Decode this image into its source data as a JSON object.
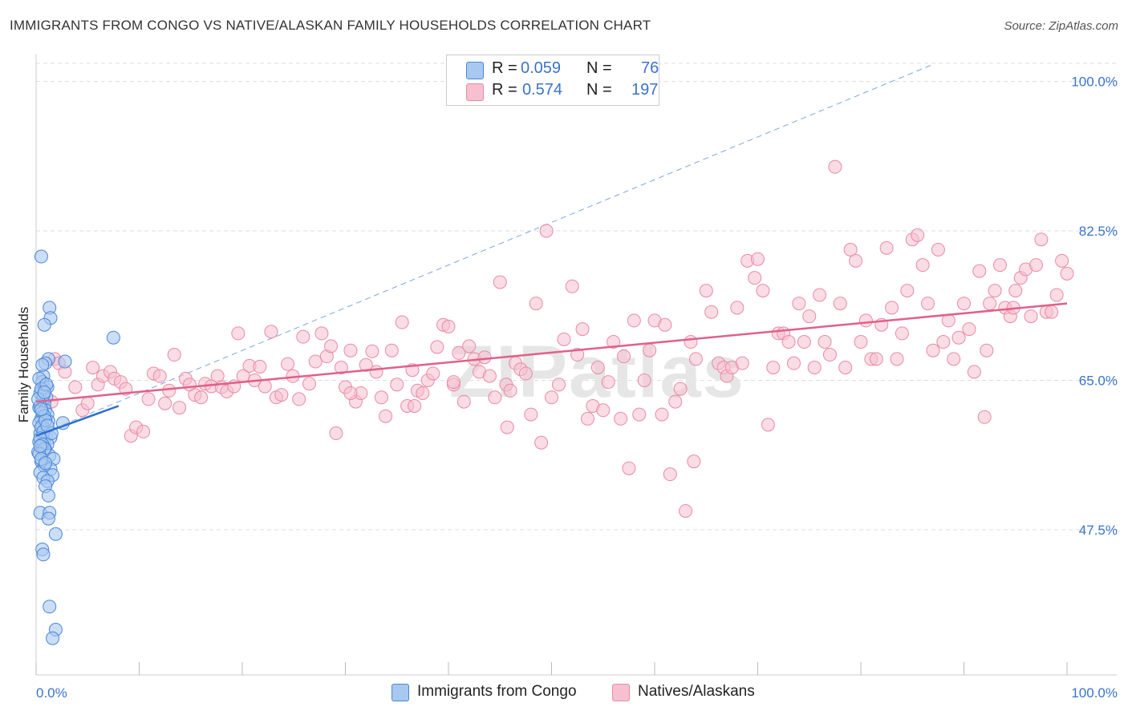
{
  "header": {
    "title": "IMMIGRANTS FROM CONGO VS NATIVE/ALASKAN FAMILY HOUSEHOLDS CORRELATION CHART",
    "source": "Source: ZipAtlas.com"
  },
  "legend": {
    "rows": [
      {
        "r_label": "R =",
        "r_value": "0.059",
        "n_label": "N =",
        "n_value": "76"
      },
      {
        "r_label": "R =",
        "r_value": "0.574",
        "n_label": "N =",
        "n_value": "197"
      }
    ]
  },
  "bottom_legend": {
    "items": [
      {
        "label": "Immigrants from Congo"
      },
      {
        "label": "Natives/Alaskans"
      }
    ]
  },
  "colors": {
    "blue_fill": "#a9c8f0",
    "blue_stroke": "#4a86d8",
    "blue_line": "#2f6fd0",
    "pink_fill": "#f6c0d0",
    "pink_stroke": "#e88aa8",
    "pink_line": "#e0608a",
    "tick_text": "#3b73c9",
    "grid": "#dddddd"
  },
  "chart_data": {
    "type": "scatter",
    "title": "IMMIGRANTS FROM CONGO VS NATIVE/ALASKAN FAMILY HOUSEHOLDS CORRELATION CHART",
    "xlabel": "",
    "ylabel": "Family Households",
    "xlim": [
      0,
      100
    ],
    "ylim": [
      30.5,
      102.5
    ],
    "x_tick_labels": {
      "left": "0.0%",
      "right": "100.0%"
    },
    "y_ticks": [
      {
        "value": 47.5,
        "label": "47.5%"
      },
      {
        "value": 65.0,
        "label": "65.0%"
      },
      {
        "value": 82.5,
        "label": "82.5%"
      },
      {
        "value": 100.0,
        "label": "100.0%"
      }
    ],
    "watermark": "ZIPatlas",
    "series": [
      {
        "name": "Immigrants from Congo",
        "R": 0.059,
        "N": 76,
        "trend": {
          "x": [
            0,
            8.0
          ],
          "y": [
            58.5,
            62.0
          ]
        },
        "diagonal": {
          "x": [
            0,
            87
          ],
          "y": [
            58.5,
            102.0
          ]
        },
        "points": [
          [
            0.5,
            79.5
          ],
          [
            1.3,
            73.5
          ],
          [
            1.4,
            72.3
          ],
          [
            0.8,
            71.5
          ],
          [
            1.2,
            67.5
          ],
          [
            0.9,
            67.0
          ],
          [
            2.8,
            67.2
          ],
          [
            7.5,
            70.0
          ],
          [
            0.7,
            65.5
          ],
          [
            0.6,
            64.8
          ],
          [
            1.1,
            64.2
          ],
          [
            0.4,
            63.5
          ],
          [
            1.0,
            63.0
          ],
          [
            0.6,
            62.6
          ],
          [
            0.8,
            62.2
          ],
          [
            0.3,
            61.8
          ],
          [
            0.9,
            61.5
          ],
          [
            1.1,
            61.0
          ],
          [
            0.5,
            60.5
          ],
          [
            1.2,
            60.2
          ],
          [
            0.6,
            59.8
          ],
          [
            0.8,
            59.3
          ],
          [
            2.6,
            60.0
          ],
          [
            0.4,
            58.8
          ],
          [
            1.0,
            58.5
          ],
          [
            1.4,
            58.3
          ],
          [
            0.7,
            58.0
          ],
          [
            0.3,
            57.8
          ],
          [
            1.1,
            57.5
          ],
          [
            0.6,
            57.2
          ],
          [
            0.9,
            56.9
          ],
          [
            0.2,
            56.6
          ],
          [
            1.3,
            56.2
          ],
          [
            1.7,
            55.8
          ],
          [
            0.5,
            55.5
          ],
          [
            0.8,
            55.0
          ],
          [
            1.4,
            54.6
          ],
          [
            0.4,
            54.2
          ],
          [
            1.6,
            53.9
          ],
          [
            0.7,
            53.6
          ],
          [
            1.1,
            53.2
          ],
          [
            0.9,
            52.6
          ],
          [
            1.2,
            51.5
          ],
          [
            0.4,
            49.5
          ],
          [
            1.3,
            49.5
          ],
          [
            1.2,
            48.8
          ],
          [
            1.9,
            47.0
          ],
          [
            0.6,
            45.2
          ],
          [
            0.7,
            44.6
          ],
          [
            1.3,
            38.5
          ],
          [
            1.9,
            35.8
          ],
          [
            1.6,
            34.8
          ],
          [
            0.3,
            65.2
          ],
          [
            0.5,
            64.0
          ],
          [
            0.7,
            63.2
          ],
          [
            0.4,
            62.0
          ],
          [
            0.6,
            61.2
          ],
          [
            0.8,
            60.8
          ],
          [
            0.3,
            60.0
          ],
          [
            0.5,
            59.5
          ],
          [
            0.7,
            59.0
          ],
          [
            0.4,
            58.2
          ],
          [
            0.6,
            57.5
          ],
          [
            0.8,
            57.0
          ],
          [
            0.3,
            56.4
          ],
          [
            0.5,
            55.8
          ],
          [
            0.9,
            55.3
          ],
          [
            0.2,
            62.8
          ],
          [
            1.0,
            64.5
          ],
          [
            0.6,
            66.8
          ],
          [
            0.9,
            60.3
          ],
          [
            1.5,
            58.8
          ],
          [
            0.5,
            61.6
          ],
          [
            0.8,
            63.6
          ],
          [
            1.1,
            59.7
          ],
          [
            0.4,
            57.3
          ]
        ]
      },
      {
        "name": "Natives/Alaskans",
        "R": 0.574,
        "N": 197,
        "trend": {
          "x": [
            0,
            100
          ],
          "y": [
            62.5,
            74.0
          ]
        },
        "points": [
          [
            0.8,
            64.0
          ],
          [
            1.5,
            62.5
          ],
          [
            1.8,
            67.5
          ],
          [
            2.2,
            67.0
          ],
          [
            2.8,
            66.0
          ],
          [
            3.8,
            64.2
          ],
          [
            4.5,
            61.5
          ],
          [
            5.0,
            62.3
          ],
          [
            5.5,
            66.5
          ],
          [
            6.0,
            64.5
          ],
          [
            6.5,
            65.5
          ],
          [
            7.2,
            66.0
          ],
          [
            7.6,
            65.2
          ],
          [
            8.2,
            64.8
          ],
          [
            8.7,
            64.0
          ],
          [
            9.2,
            58.5
          ],
          [
            9.7,
            59.5
          ],
          [
            10.4,
            59.0
          ],
          [
            10.9,
            62.8
          ],
          [
            11.4,
            65.8
          ],
          [
            12.0,
            65.5
          ],
          [
            12.5,
            62.3
          ],
          [
            12.9,
            63.8
          ],
          [
            13.4,
            68.0
          ],
          [
            13.9,
            61.8
          ],
          [
            14.5,
            65.2
          ],
          [
            14.9,
            64.5
          ],
          [
            15.4,
            63.3
          ],
          [
            16.0,
            63.0
          ],
          [
            16.4,
            64.6
          ],
          [
            17.0,
            64.3
          ],
          [
            17.6,
            65.5
          ],
          [
            18.0,
            64.2
          ],
          [
            18.5,
            63.7
          ],
          [
            19.2,
            64.3
          ],
          [
            19.6,
            70.5
          ],
          [
            20.1,
            65.5
          ],
          [
            20.7,
            66.7
          ],
          [
            21.2,
            65.0
          ],
          [
            21.7,
            66.6
          ],
          [
            22.2,
            64.3
          ],
          [
            22.8,
            70.7
          ],
          [
            23.3,
            63.0
          ],
          [
            23.8,
            63.3
          ],
          [
            24.4,
            66.9
          ],
          [
            24.9,
            65.5
          ],
          [
            25.5,
            62.8
          ],
          [
            25.9,
            70.1
          ],
          [
            26.5,
            64.6
          ],
          [
            27.1,
            67.2
          ],
          [
            27.7,
            70.5
          ],
          [
            28.2,
            67.8
          ],
          [
            28.6,
            69.0
          ],
          [
            29.1,
            58.8
          ],
          [
            29.6,
            66.5
          ],
          [
            30.0,
            64.2
          ],
          [
            30.5,
            68.5
          ],
          [
            31.0,
            62.5
          ],
          [
            31.5,
            63.5
          ],
          [
            32.0,
            66.8
          ],
          [
            32.6,
            68.4
          ],
          [
            33.0,
            66.0
          ],
          [
            33.5,
            63.0
          ],
          [
            33.9,
            60.8
          ],
          [
            34.5,
            68.5
          ],
          [
            35.0,
            64.5
          ],
          [
            35.5,
            71.8
          ],
          [
            36.0,
            62.0
          ],
          [
            36.5,
            66.2
          ],
          [
            37.0,
            63.8
          ],
          [
            37.5,
            63.5
          ],
          [
            38.0,
            65.0
          ],
          [
            38.5,
            65.8
          ],
          [
            38.9,
            68.9
          ],
          [
            39.5,
            71.5
          ],
          [
            40.0,
            71.3
          ],
          [
            40.5,
            64.5
          ],
          [
            41.0,
            68.2
          ],
          [
            41.5,
            62.5
          ],
          [
            42.0,
            69.0
          ],
          [
            42.5,
            67.5
          ],
          [
            43.0,
            66.0
          ],
          [
            43.5,
            67.7
          ],
          [
            44.0,
            65.5
          ],
          [
            44.5,
            63.0
          ],
          [
            45.0,
            76.5
          ],
          [
            45.6,
            64.5
          ],
          [
            46.0,
            63.8
          ],
          [
            46.5,
            67.0
          ],
          [
            47.0,
            66.3
          ],
          [
            47.5,
            65.8
          ],
          [
            48.0,
            61.0
          ],
          [
            48.5,
            74.0
          ],
          [
            49.0,
            57.7
          ],
          [
            49.5,
            82.5
          ],
          [
            50.0,
            63.0
          ],
          [
            50.7,
            64.5
          ],
          [
            51.2,
            69.8
          ],
          [
            52.0,
            76.0
          ],
          [
            52.5,
            68.0
          ],
          [
            53.0,
            71.0
          ],
          [
            53.5,
            60.5
          ],
          [
            54.0,
            62.0
          ],
          [
            54.5,
            66.5
          ],
          [
            55.0,
            61.5
          ],
          [
            55.5,
            64.8
          ],
          [
            56.0,
            69.5
          ],
          [
            56.7,
            60.5
          ],
          [
            57.0,
            67.8
          ],
          [
            57.5,
            54.7
          ],
          [
            58.0,
            72.0
          ],
          [
            58.5,
            61.0
          ],
          [
            59.0,
            65.0
          ],
          [
            59.5,
            68.5
          ],
          [
            60.0,
            72.0
          ],
          [
            60.7,
            61.0
          ],
          [
            61.0,
            71.5
          ],
          [
            61.5,
            54.0
          ],
          [
            62.0,
            62.5
          ],
          [
            62.5,
            64.0
          ],
          [
            63.0,
            49.7
          ],
          [
            63.5,
            69.5
          ],
          [
            64.0,
            67.5
          ],
          [
            65.0,
            75.5
          ],
          [
            65.5,
            73.0
          ],
          [
            66.2,
            67.0
          ],
          [
            66.7,
            66.5
          ],
          [
            67.0,
            65.5
          ],
          [
            67.5,
            66.5
          ],
          [
            68.0,
            73.5
          ],
          [
            68.5,
            67.0
          ],
          [
            69.0,
            79.0
          ],
          [
            69.7,
            77.0
          ],
          [
            70.0,
            79.2
          ],
          [
            70.5,
            75.5
          ],
          [
            71.0,
            59.8
          ],
          [
            71.5,
            66.5
          ],
          [
            72.0,
            70.5
          ],
          [
            72.5,
            70.5
          ],
          [
            73.0,
            69.5
          ],
          [
            73.5,
            67.0
          ],
          [
            74.0,
            74.0
          ],
          [
            74.5,
            69.5
          ],
          [
            75.0,
            72.5
          ],
          [
            75.5,
            66.5
          ],
          [
            76.0,
            75.0
          ],
          [
            76.5,
            69.5
          ],
          [
            77.0,
            68.0
          ],
          [
            77.5,
            90.0
          ],
          [
            78.0,
            74.0
          ],
          [
            78.5,
            66.5
          ],
          [
            79.0,
            80.3
          ],
          [
            79.5,
            79.0
          ],
          [
            80.0,
            69.5
          ],
          [
            80.5,
            72.0
          ],
          [
            81.0,
            67.5
          ],
          [
            81.5,
            67.5
          ],
          [
            82.0,
            71.5
          ],
          [
            82.5,
            80.5
          ],
          [
            83.0,
            73.5
          ],
          [
            83.5,
            67.5
          ],
          [
            84.0,
            70.5
          ],
          [
            84.5,
            75.5
          ],
          [
            85.0,
            81.5
          ],
          [
            85.5,
            82.0
          ],
          [
            86.0,
            78.5
          ],
          [
            86.5,
            74.0
          ],
          [
            87.0,
            68.5
          ],
          [
            87.5,
            80.3
          ],
          [
            88.0,
            69.5
          ],
          [
            88.5,
            72.0
          ],
          [
            89.0,
            67.5
          ],
          [
            89.5,
            70.0
          ],
          [
            90.0,
            74.0
          ],
          [
            90.5,
            71.0
          ],
          [
            91.0,
            66.0
          ],
          [
            91.5,
            77.8
          ],
          [
            92.0,
            60.7
          ],
          [
            92.5,
            74.0
          ],
          [
            93.0,
            75.5
          ],
          [
            93.5,
            78.5
          ],
          [
            94.0,
            73.5
          ],
          [
            94.5,
            72.5
          ],
          [
            95.0,
            75.5
          ],
          [
            95.5,
            77.0
          ],
          [
            96.0,
            78.0
          ],
          [
            96.5,
            72.5
          ],
          [
            97.0,
            78.5
          ],
          [
            97.5,
            81.5
          ],
          [
            98.0,
            73.0
          ],
          [
            98.5,
            73.0
          ],
          [
            99.0,
            75.0
          ],
          [
            99.5,
            79.0
          ],
          [
            100.0,
            77.5
          ],
          [
            92.2,
            68.5
          ],
          [
            94.8,
            73.5
          ],
          [
            63.8,
            55.5
          ],
          [
            36.7,
            62.0
          ],
          [
            45.7,
            59.5
          ],
          [
            40.5,
            64.8
          ],
          [
            30.5,
            63.5
          ]
        ]
      }
    ]
  }
}
